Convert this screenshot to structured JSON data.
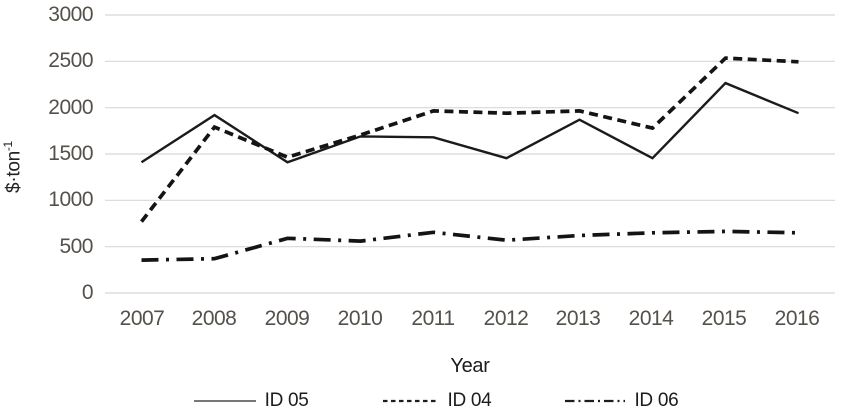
{
  "chart_data": {
    "type": "line",
    "x": [
      2007,
      2008,
      2009,
      2010,
      2011,
      2012,
      2013,
      2014,
      2015,
      2016
    ],
    "series": [
      {
        "name": "ID 05",
        "style": "solid",
        "values": [
          1410,
          1920,
          1410,
          1690,
          1680,
          1455,
          1870,
          1455,
          2265,
          1940
        ]
      },
      {
        "name": "ID 04",
        "style": "dashed",
        "values": [
          770,
          1790,
          1465,
          1705,
          1965,
          1940,
          1965,
          1780,
          2535,
          2495
        ]
      },
      {
        "name": "ID 06",
        "style": "dashdot",
        "values": [
          355,
          370,
          590,
          560,
          655,
          570,
          620,
          650,
          665,
          650
        ]
      }
    ],
    "title": "",
    "xlabel": "Year",
    "ylabel": "$·ton⁻¹",
    "ylabel_render": {
      "base": "$·ton",
      "sup": "-1"
    },
    "yticks": [
      0,
      500,
      1000,
      1500,
      2000,
      2500,
      3000
    ],
    "ylim": [
      0,
      3000
    ],
    "grid": "horizontal-only",
    "legend_position": "bottom",
    "colors": {
      "line": "#1b1b1b",
      "grid": "#d8d8d8",
      "tick_text": "#55504a",
      "label_text": "#1c1c1c"
    }
  }
}
